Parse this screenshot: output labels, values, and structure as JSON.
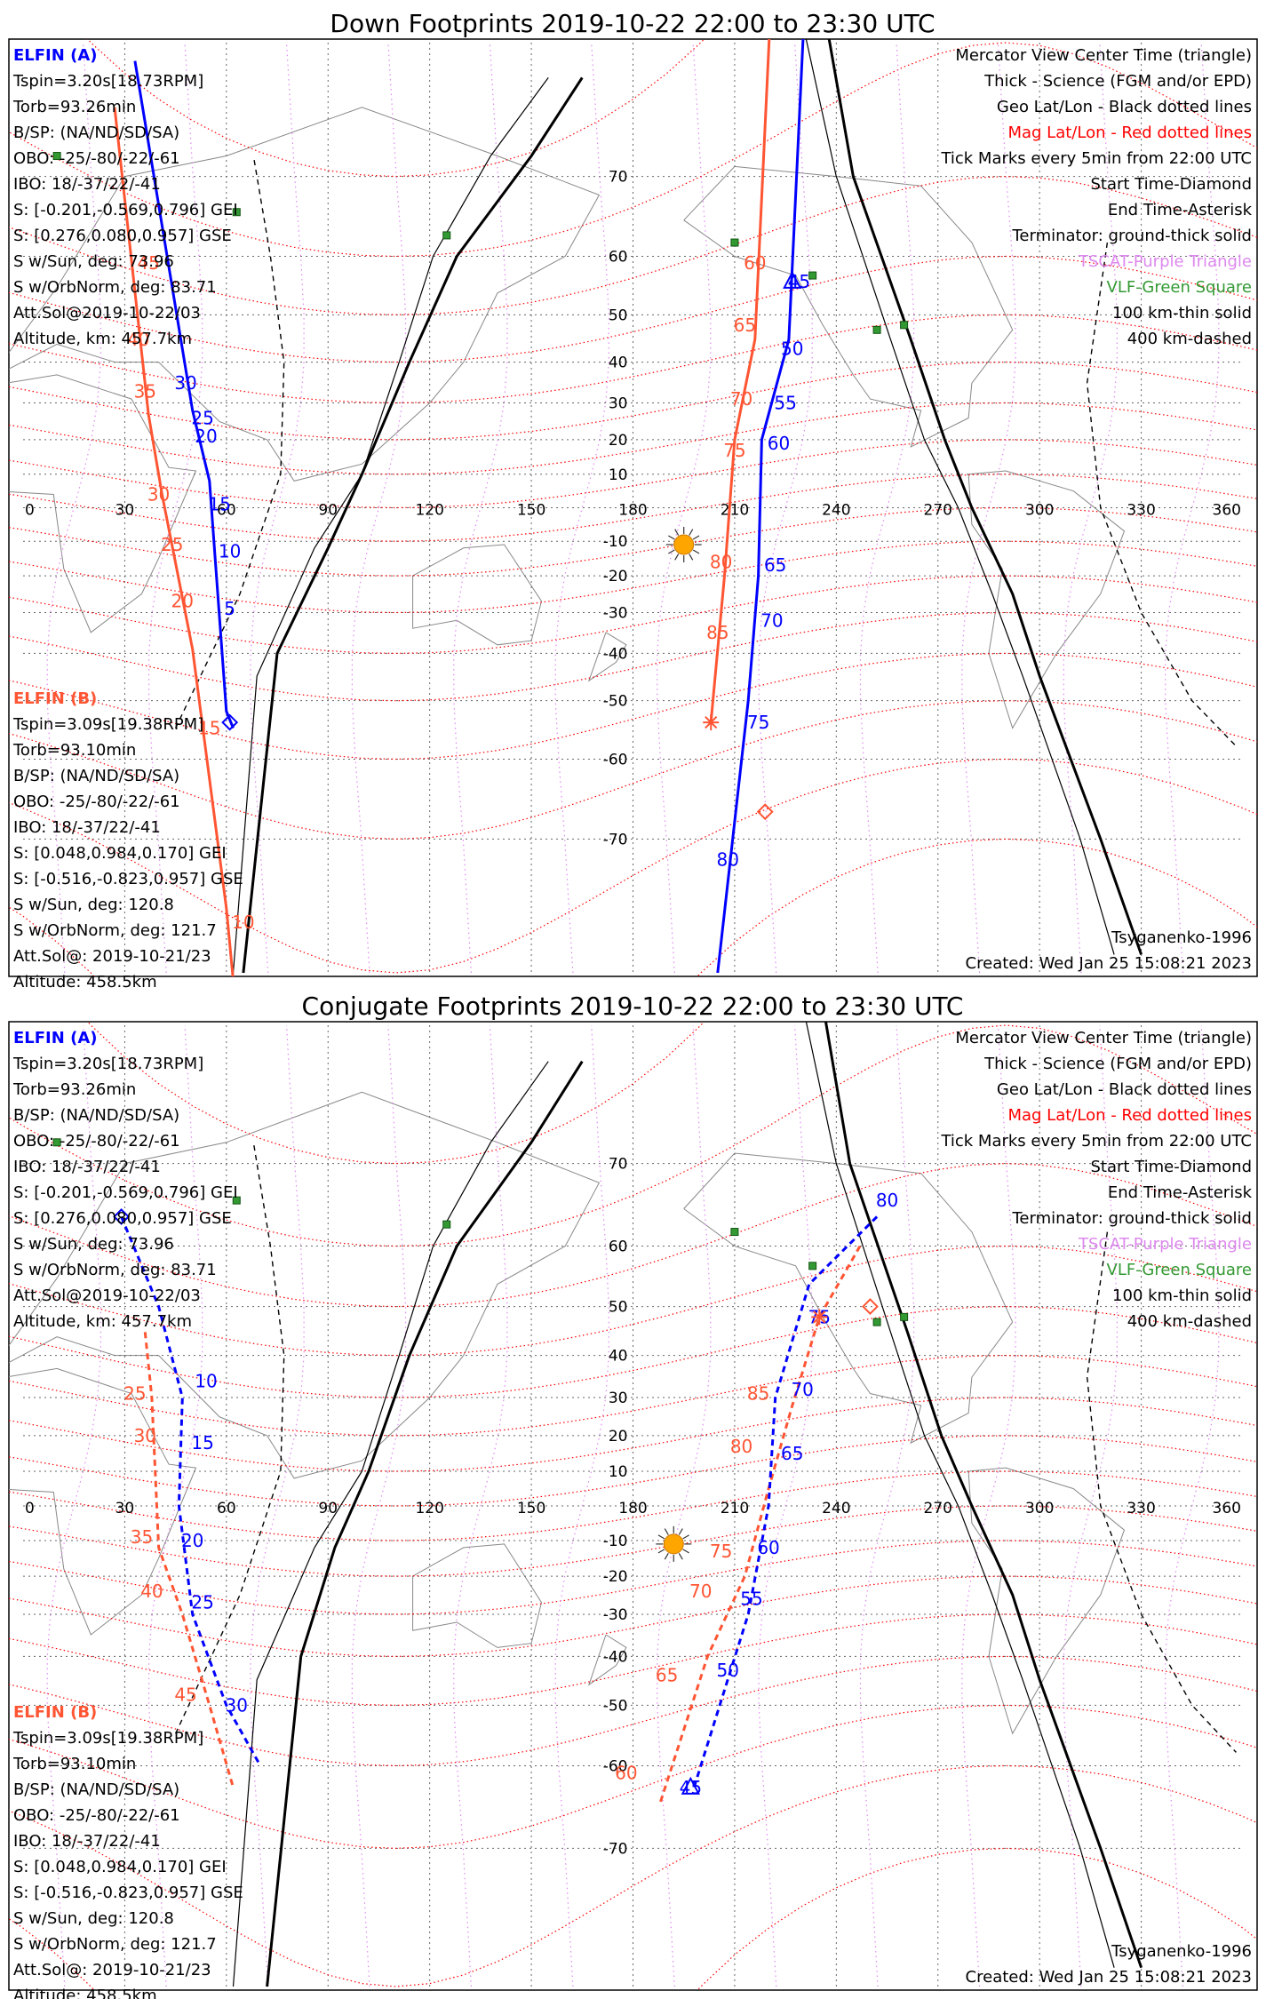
{
  "colors": {
    "elfin_a": "#0000ff",
    "elfin_b": "#ff5533",
    "mag_grid": "#ff0000",
    "geo_grid": "#666666",
    "tsyg_boundary": "#dd88ee",
    "vlf": "#339933",
    "sun": "#ffa500",
    "coast": "#888888"
  },
  "common": {
    "lon_labels": [
      "0",
      "30",
      "60",
      "90",
      "120",
      "150",
      "180",
      "210",
      "240",
      "270",
      "300",
      "330",
      "360"
    ],
    "lat_labels": [
      "70",
      "60",
      "50",
      "40",
      "30",
      "20",
      "10",
      "-10",
      "-20",
      "-30",
      "-40",
      "-50",
      "-60",
      "-70"
    ],
    "vlf_points": [
      [
        10,
        72
      ],
      [
        63,
        66
      ],
      [
        125,
        63
      ],
      [
        210,
        62
      ],
      [
        233,
        57
      ],
      [
        252,
        47
      ],
      [
        260,
        48
      ]
    ],
    "elfin_a": {
      "label": "ELFIN (A)",
      "tspin": "Tspin=3.20s[18.73RPM]",
      "torb": "Torb=93.26min",
      "bsp": "B/SP: (NA/ND/SD/SA)",
      "obo": "OBO: -25/-80/-22/-61",
      "ibo": "IBO: 18/-37/22/-41",
      "s_gei": "S: [-0.201,-0.569,0.796] GEI",
      "s_gse": "S: [0.276,0.080,0.957] GSE",
      "s_sun": "S w/Sun, deg: 73.96",
      "s_orb": "S w/OrbNorm, deg: 83.71",
      "att": "Att.Sol@2019-10-22/03",
      "alt": "Altitude, km: 457.7km"
    },
    "elfin_b": {
      "label": "ELFIN (B)",
      "tspin": "Tspin=3.09s[19.38RPM]",
      "torb": "Torb=93.10min",
      "bsp": "B/SP: (NA/ND/SD/SA)",
      "obo": "OBO: -25/-80/-22/-61",
      "ibo": "IBO: 18/-37/22/-41",
      "s_gei": "S: [0.048,0.984,0.170] GEI",
      "s_gse": "S: [-0.516,-0.823,0.957] GSE",
      "s_sun": "S w/Sun, deg: 120.8",
      "s_orb": "S w/OrbNorm, deg: 121.7",
      "att": "Att.Sol@: 2019-10-21/23",
      "alt": "Altitude: 458.5km"
    },
    "legend": [
      {
        "text": "Mercator View Center Time (triangle)",
        "color": "#000000"
      },
      {
        "text": "Thick - Science (FGM and/or EPD)",
        "color": "#000000"
      },
      {
        "text": "Geo Lat/Lon - Black dotted lines",
        "color": "#000000"
      },
      {
        "text": "Mag Lat/Lon - Red dotted lines",
        "color": "#ff0000"
      },
      {
        "text": "Tick Marks every 5min from 22:00 UTC",
        "color": "#000000"
      },
      {
        "text": "Start Time-Diamond",
        "color": "#000000"
      },
      {
        "text": "End Time-Asterisk",
        "color": "#000000"
      },
      {
        "text": "Terminator: ground-thick solid",
        "color": "#000000"
      },
      {
        "text": "TSCAT-Purple Triangle",
        "color": "#dd88ee"
      },
      {
        "text": "VLF-Green Square",
        "color": "#339933"
      },
      {
        "text": "100 km-thin solid",
        "color": "#000000"
      },
      {
        "text": "400 km-dashed",
        "color": "#000000"
      }
    ],
    "model": "Tsyganenko-1996",
    "created": "Created: Wed Jan 25 15:08:21 2023"
  },
  "panels": [
    {
      "title": "Down Footprints 2019-10-22 22:00 to 23:30 UTC",
      "sun": [
        195,
        -11
      ],
      "a_tracks": [
        {
          "dashed": false,
          "points": [
            [
              33,
              79
            ],
            [
              50,
              28
            ],
            [
              55,
              8
            ],
            [
              60,
              -52
            ],
            [
              62,
              -55
            ]
          ],
          "marks": [
            [
              "30",
              48,
              35
            ],
            [
              "25",
              53,
              26
            ],
            [
              "20",
              54,
              21
            ],
            [
              "15",
              58,
              1
            ],
            [
              "10",
              61,
              -13
            ],
            [
              "5",
              61,
              -29
            ]
          ]
        },
        {
          "dashed": false,
          "points": [
            [
              232,
              85
            ],
            [
              226,
              45
            ],
            [
              218,
              20
            ],
            [
              217,
              -20
            ],
            [
              214,
              -50
            ],
            [
              205,
              -80
            ]
          ],
          "marks": [
            [
              "45",
              229,
              56
            ],
            [
              "50",
              227,
              43
            ],
            [
              "55",
              225,
              30
            ],
            [
              "60",
              223,
              19
            ],
            [
              "65",
              222,
              -17
            ],
            [
              "70",
              221,
              -32
            ],
            [
              "75",
              217,
              -54
            ],
            [
              "80",
              208,
              -72
            ]
          ]
        }
      ],
      "b_tracks": [
        {
          "dashed": false,
          "points": [
            [
              27,
              76
            ],
            [
              37,
              27
            ],
            [
              41,
              4
            ],
            [
              50,
              -39
            ],
            [
              60,
              -76
            ],
            [
              63,
              -82
            ]
          ],
          "marks": [
            [
              "45",
              37,
              59
            ],
            [
              "40",
              34,
              45
            ],
            [
              "35",
              36,
              33
            ],
            [
              "30",
              40,
              4
            ],
            [
              "25",
              44,
              -11
            ],
            [
              "20",
              47,
              -27
            ],
            [
              "15",
              55,
              -55
            ],
            [
              "10",
              65,
              -77
            ]
          ]
        },
        {
          "dashed": false,
          "points": [
            [
              222,
              85
            ],
            [
              216,
              45
            ],
            [
              210,
              20
            ],
            [
              207,
              -20
            ],
            [
              203,
              -54
            ]
          ],
          "marks": [
            [
              "60",
              216,
              59
            ],
            [
              "65",
              213,
              48
            ],
            [
              "70",
              212,
              31
            ],
            [
              "75",
              210,
              17
            ],
            [
              "80",
              206,
              -16
            ],
            [
              "85",
              205,
              -35
            ]
          ]
        }
      ],
      "a_start": [
        61,
        -54
      ],
      "b_start": [
        219,
        -67
      ],
      "b_end": [
        203,
        -54
      ],
      "a_view": [
        227,
        56
      ],
      "terminators": [
        {
          "kind": "thick",
          "points": [
            [
              65,
              -80
            ],
            [
              75,
              -40
            ],
            [
              90,
              -12
            ],
            [
              100,
              10
            ],
            [
              114,
              40
            ],
            [
              128,
              60
            ],
            [
              150,
              72
            ],
            [
              165,
              78
            ]
          ]
        },
        {
          "kind": "thick",
          "points": [
            [
              233,
              84
            ],
            [
              245,
              70
            ],
            [
              262,
              45
            ],
            [
              272,
              20
            ],
            [
              280,
              0
            ],
            [
              292,
              -25
            ],
            [
              300,
              -45
            ],
            [
              318,
              -70
            ],
            [
              330,
              -79
            ]
          ]
        },
        {
          "kind": "thin",
          "points": [
            [
              62,
              -80
            ],
            [
              69,
              -45
            ],
            [
              86,
              -12
            ],
            [
              100,
              10
            ],
            [
              111,
              40
            ],
            [
              121,
              60
            ],
            [
              138,
              72
            ],
            [
              155,
              78
            ]
          ]
        },
        {
          "kind": "thin",
          "points": [
            [
              225,
              84
            ],
            [
              240,
              70
            ],
            [
              256,
              45
            ],
            [
              266,
              20
            ],
            [
              276,
              0
            ],
            [
              286,
              -25
            ],
            [
              295,
              -45
            ],
            [
              312,
              -70
            ],
            [
              322,
              -79
            ]
          ]
        },
        {
          "kind": "dashed",
          "points": [
            [
              45,
              -55
            ],
            [
              64,
              -25
            ],
            [
              76,
              10
            ],
            [
              77,
              40
            ],
            [
              73,
              60
            ],
            [
              68,
              72
            ]
          ]
        },
        {
          "kind": "dashed",
          "points": [
            [
              320,
              62
            ],
            [
              314,
              35
            ],
            [
              318,
              0
            ],
            [
              330,
              -30
            ],
            [
              345,
              -50
            ],
            [
              358,
              -58
            ]
          ]
        }
      ]
    },
    {
      "title": "Conjugate Footprints 2019-10-22 22:00 to 23:30 UTC",
      "sun": [
        192,
        -11
      ],
      "a_tracks": [
        {
          "dashed": true,
          "points": [
            [
              29,
              64
            ],
            [
              40,
              50
            ],
            [
              47,
              30
            ],
            [
              46,
              0
            ],
            [
              50,
              -30
            ],
            [
              60,
              -50
            ],
            [
              70,
              -60
            ]
          ],
          "marks": [
            [
              "10",
              54,
              34
            ],
            [
              "15",
              53,
              18
            ],
            [
              "20",
              50,
              -10
            ],
            [
              "25",
              53,
              -27
            ],
            [
              "30",
              63,
              -50
            ]
          ]
        },
        {
          "dashed": true,
          "points": [
            [
              252,
              64
            ],
            [
              232,
              54
            ],
            [
              222,
              30
            ],
            [
              220,
              0
            ],
            [
              214,
              -30
            ],
            [
              198,
              -63
            ]
          ],
          "marks": [
            [
              "80",
              255,
              66
            ],
            [
              "75",
              235,
              48
            ],
            [
              "70",
              230,
              32
            ],
            [
              "65",
              227,
              15
            ],
            [
              "60",
              220,
              -12
            ],
            [
              "55",
              215,
              -26
            ],
            [
              "50",
              208,
              -43
            ],
            [
              "45",
              197,
              -63
            ]
          ]
        }
      ],
      "b_tracks": [
        {
          "dashed": true,
          "points": [
            [
              36,
              45
            ],
            [
              38,
              30
            ],
            [
              39,
              10
            ],
            [
              40,
              -12
            ],
            [
              47,
              -30
            ],
            [
              55,
              -50
            ],
            [
              62,
              -63
            ]
          ],
          "marks": [
            [
              "25",
              33,
              31
            ],
            [
              "30",
              36,
              20
            ],
            [
              "35",
              35,
              -9
            ],
            [
              "40",
              38,
              -24
            ],
            [
              "45",
              48,
              -48
            ]
          ]
        },
        {
          "dashed": true,
          "points": [
            [
              247,
              60
            ],
            [
              235,
              48
            ],
            [
              227,
              28
            ],
            [
              220,
              5
            ],
            [
              213,
              -20
            ],
            [
              202,
              -40
            ],
            [
              188,
              -65
            ]
          ],
          "marks": [
            [
              "85",
              217,
              31
            ],
            [
              "80",
              212,
              17
            ],
            [
              "75",
              206,
              -13
            ],
            [
              "70",
              200,
              -24
            ],
            [
              "65",
              190,
              -44
            ],
            [
              "60",
              178,
              -61
            ]
          ]
        }
      ],
      "a_start": [
        29,
        64
      ],
      "a_view": [
        197,
        -63
      ],
      "b_start": [
        250,
        50
      ],
      "b_end": [
        235,
        48
      ],
      "terminators": [
        {
          "kind": "thick",
          "points": [
            [
              72,
              -80
            ],
            [
              82,
              -40
            ],
            [
              92,
              -12
            ],
            [
              102,
              10
            ],
            [
              114,
              40
            ],
            [
              128,
              60
            ],
            [
              150,
              72
            ],
            [
              165,
              78
            ]
          ]
        },
        {
          "kind": "thick",
          "points": [
            [
              232,
              84
            ],
            [
              244,
              70
            ],
            [
              261,
              45
            ],
            [
              271,
              20
            ],
            [
              280,
              0
            ],
            [
              292,
              -25
            ],
            [
              300,
              -45
            ],
            [
              318,
              -70
            ],
            [
              330,
              -79
            ]
          ]
        },
        {
          "kind": "thin",
          "points": [
            [
              62,
              -80
            ],
            [
              69,
              -45
            ],
            [
              86,
              -12
            ],
            [
              100,
              10
            ],
            [
              111,
              40
            ],
            [
              121,
              60
            ],
            [
              138,
              72
            ],
            [
              155,
              78
            ]
          ]
        },
        {
          "kind": "thin",
          "points": [
            [
              225,
              84
            ],
            [
              240,
              70
            ],
            [
              256,
              45
            ],
            [
              266,
              20
            ],
            [
              276,
              0
            ],
            [
              286,
              -25
            ],
            [
              295,
              -45
            ],
            [
              312,
              -70
            ],
            [
              322,
              -79
            ]
          ]
        },
        {
          "kind": "dashed",
          "points": [
            [
              45,
              -55
            ],
            [
              64,
              -25
            ],
            [
              76,
              10
            ],
            [
              77,
              40
            ],
            [
              73,
              60
            ],
            [
              68,
              72
            ]
          ]
        },
        {
          "kind": "dashed",
          "points": [
            [
              320,
              62
            ],
            [
              314,
              35
            ],
            [
              318,
              0
            ],
            [
              330,
              -30
            ],
            [
              345,
              -50
            ],
            [
              358,
              -58
            ]
          ]
        }
      ]
    }
  ]
}
